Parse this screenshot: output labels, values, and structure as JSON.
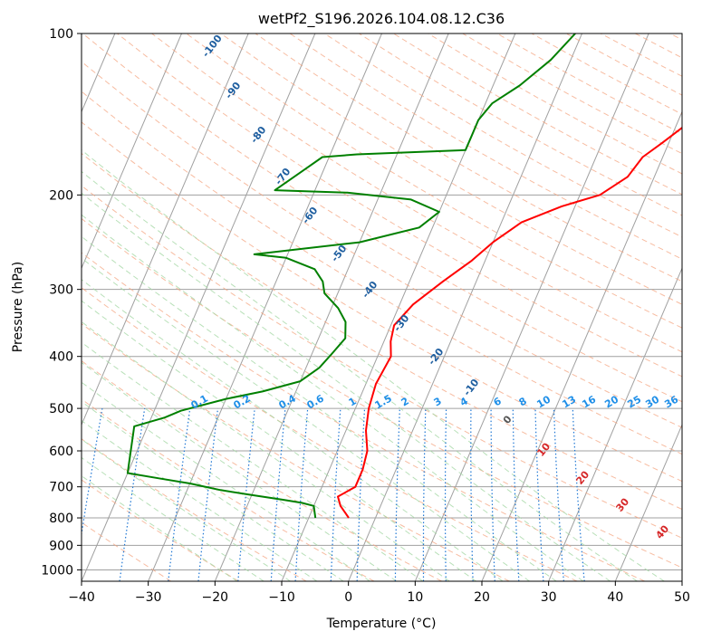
{
  "chart_data": {
    "type": "line",
    "subtype": "skew-t log-p diagram",
    "title": "wetPf2_S196.2026.104.08.12.C36",
    "xlabel": "Temperature (°C)",
    "ylabel": "Pressure (hPa)",
    "xlim": [
      -40,
      50
    ],
    "ylim": [
      1050,
      100
    ],
    "y_scale": "log",
    "grid": true,
    "x_ticks": [
      -40,
      -30,
      -20,
      -10,
      0,
      10,
      20,
      30,
      40,
      50
    ],
    "y_ticks": [
      100,
      200,
      300,
      400,
      500,
      600,
      700,
      800,
      900,
      1000
    ],
    "series": [
      {
        "kind": "temperature",
        "color": "#ff0000",
        "points": [
          [
            -4,
            800
          ],
          [
            -6,
            760
          ],
          [
            -7,
            730
          ],
          [
            -5,
            700
          ],
          [
            -5,
            650
          ],
          [
            -5.5,
            600
          ],
          [
            -7,
            550
          ],
          [
            -8,
            500
          ],
          [
            -8.5,
            450
          ],
          [
            -8,
            400
          ],
          [
            -9,
            375
          ],
          [
            -9.5,
            350
          ],
          [
            -8,
            320
          ],
          [
            -5,
            290
          ],
          [
            -2,
            265
          ],
          [
            0,
            245
          ],
          [
            3,
            225
          ],
          [
            8,
            210
          ],
          [
            13,
            200
          ],
          [
            16,
            185
          ],
          [
            17,
            170
          ],
          [
            19,
            160
          ],
          [
            21,
            150
          ],
          [
            23,
            140
          ],
          [
            27,
            125
          ],
          [
            30,
            112
          ],
          [
            32,
            100
          ]
        ]
      },
      {
        "kind": "dewpoint",
        "color": "#008000",
        "points": [
          [
            -9,
            800
          ],
          [
            -9.5,
            780
          ],
          [
            -10,
            760
          ],
          [
            -12,
            750
          ],
          [
            -15,
            740
          ],
          [
            -20,
            725
          ],
          [
            -25,
            710
          ],
          [
            -30,
            690
          ],
          [
            -35,
            675
          ],
          [
            -40,
            660
          ],
          [
            -42,
            540
          ],
          [
            -38,
            520
          ],
          [
            -36,
            505
          ],
          [
            -30,
            480
          ],
          [
            -25,
            465
          ],
          [
            -20,
            445
          ],
          [
            -18,
            420
          ],
          [
            -17,
            395
          ],
          [
            -16,
            370
          ],
          [
            -17,
            345
          ],
          [
            -19,
            325
          ],
          [
            -22,
            305
          ],
          [
            -23,
            290
          ],
          [
            -25,
            275
          ],
          [
            -30,
            262
          ],
          [
            -35,
            258
          ],
          [
            -20,
            245
          ],
          [
            -12,
            230
          ],
          [
            -10,
            215
          ],
          [
            -15,
            204
          ],
          [
            -25,
            198
          ],
          [
            -36,
            196
          ],
          [
            -33,
            180
          ],
          [
            -31,
            170
          ],
          [
            -26,
            168
          ],
          [
            -10,
            165
          ],
          [
            -10,
            155
          ],
          [
            -10,
            145
          ],
          [
            -9,
            135
          ],
          [
            -6,
            125
          ],
          [
            -3,
            112
          ],
          [
            -1,
            100
          ]
        ]
      }
    ],
    "dry_adiabat_labels": [
      "-100",
      "-90",
      "-80",
      "-70",
      "-60",
      "-50",
      "-40",
      "-30",
      "-20",
      "-10"
    ],
    "mixing_ratio_labels": [
      "0.1",
      "0.2",
      "0.4",
      "0.6",
      "1",
      "1.5",
      "2",
      "3",
      "4",
      "6",
      "8",
      "10",
      "13",
      "16",
      "20",
      "25",
      "30",
      "36"
    ],
    "moist_adiabat_labels": [
      "0",
      "10",
      "20",
      "30",
      "40"
    ],
    "colors": {
      "temperature": "#ff0000",
      "dewpoint": "#008000",
      "isotherm": "#a0a0a0",
      "isobar": "#a0a0a0",
      "dry_adiabat": "#f4a582",
      "moist_adiabat": "#a6d8a6",
      "mixing_ratio": "#1f77d4",
      "dry_adiabat_label": "#1f5fa0",
      "moist_adiabat_label": "#d62728",
      "mixing_ratio_label": "#1f8fe8"
    }
  }
}
